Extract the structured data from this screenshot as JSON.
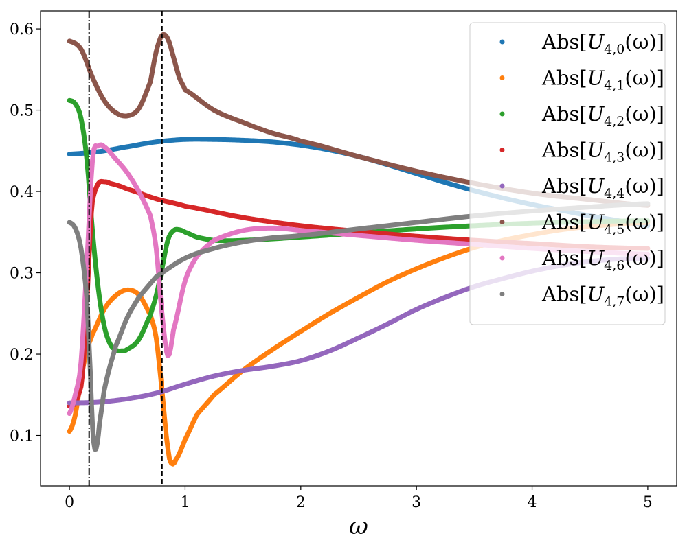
{
  "chart_data": {
    "type": "scatter",
    "xlabel": "ω",
    "ylabel": "",
    "xlim": [
      -0.25,
      5.25
    ],
    "ylim": [
      0.038,
      0.622
    ],
    "xticks": [
      0,
      1,
      2,
      3,
      4,
      5
    ],
    "xtick_labels": [
      "0",
      "1",
      "2",
      "3",
      "4",
      "5"
    ],
    "yticks": [
      0.1,
      0.2,
      0.3,
      0.4,
      0.5,
      0.6
    ],
    "ytick_labels": [
      "0.1",
      "0.2",
      "0.3",
      "0.4",
      "0.5",
      "0.6"
    ],
    "grid": false,
    "legend_position": "top-right",
    "vlines": [
      {
        "x": 0.17,
        "style": "dashdot",
        "color": "#000000"
      },
      {
        "x": 0.8,
        "style": "dashed",
        "color": "#000000"
      }
    ],
    "series": [
      {
        "name": "Abs[U4,0(ω)]",
        "legend": {
          "base": "Abs[",
          "italic": "U",
          "sub": "4,0",
          "rest": "(ω)]"
        },
        "color": "#1f77b4",
        "x": [
          0,
          0.25,
          0.5,
          0.75,
          1.0,
          1.25,
          1.5,
          1.75,
          2.0,
          2.25,
          2.5,
          2.75,
          3.0,
          3.25,
          3.5,
          3.75,
          4.0,
          4.25,
          4.5,
          4.75,
          5.0
        ],
        "y": [
          0.446,
          0.449,
          0.455,
          0.461,
          0.464,
          0.464,
          0.463,
          0.461,
          0.457,
          0.451,
          0.443,
          0.433,
          0.422,
          0.411,
          0.401,
          0.392,
          0.384,
          0.377,
          0.37,
          0.364,
          0.358
        ]
      },
      {
        "name": "Abs[U4,1(ω)]",
        "legend": {
          "base": "Abs[",
          "italic": "U",
          "sub": "4,1",
          "rest": "(ω)]"
        },
        "color": "#ff7f0e",
        "x": [
          0,
          0.05,
          0.1,
          0.15,
          0.2,
          0.3,
          0.4,
          0.5,
          0.6,
          0.7,
          0.75,
          0.8,
          0.85,
          0.88,
          0.92,
          1.0,
          1.1,
          1.25,
          1.5,
          1.75,
          2.0,
          2.25,
          2.5,
          2.75,
          3.0,
          3.25,
          3.5,
          3.75,
          4.0,
          4.25,
          4.5,
          4.75,
          5.0
        ],
        "y": [
          0.105,
          0.125,
          0.17,
          0.205,
          0.225,
          0.255,
          0.272,
          0.279,
          0.273,
          0.248,
          0.22,
          0.155,
          0.085,
          0.066,
          0.07,
          0.095,
          0.125,
          0.15,
          0.18,
          0.205,
          0.228,
          0.25,
          0.27,
          0.289,
          0.305,
          0.319,
          0.331,
          0.34,
          0.347,
          0.353,
          0.357,
          0.36,
          0.362
        ]
      },
      {
        "name": "Abs[U4,2(ω)]",
        "legend": {
          "base": "Abs[",
          "italic": "U",
          "sub": "4,2",
          "rest": "(ω)]"
        },
        "color": "#2ca02c",
        "x": [
          0,
          0.05,
          0.1,
          0.15,
          0.2,
          0.25,
          0.3,
          0.35,
          0.4,
          0.45,
          0.5,
          0.6,
          0.7,
          0.75,
          0.8,
          0.85,
          0.9,
          0.95,
          1.0,
          1.1,
          1.25,
          1.5,
          2.0,
          2.5,
          3.0,
          3.5,
          4.0,
          4.5,
          5.0
        ],
        "y": [
          0.512,
          0.508,
          0.49,
          0.44,
          0.35,
          0.28,
          0.235,
          0.213,
          0.205,
          0.204,
          0.206,
          0.218,
          0.248,
          0.272,
          0.305,
          0.34,
          0.352,
          0.353,
          0.35,
          0.344,
          0.34,
          0.34,
          0.344,
          0.349,
          0.354,
          0.358,
          0.361,
          0.363,
          0.364
        ]
      },
      {
        "name": "Abs[U4,3(ω)]",
        "legend": {
          "base": "Abs[",
          "italic": "U",
          "sub": "4,3",
          "rest": "(ω)]"
        },
        "color": "#d62728",
        "x": [
          0,
          0.05,
          0.1,
          0.12,
          0.15,
          0.18,
          0.2,
          0.25,
          0.3,
          0.35,
          0.5,
          0.75,
          1.0,
          1.5,
          2.0,
          2.5,
          3.0,
          3.5,
          4.0,
          4.5,
          5.0
        ],
        "y": [
          0.136,
          0.14,
          0.16,
          0.19,
          0.26,
          0.35,
          0.39,
          0.41,
          0.412,
          0.41,
          0.403,
          0.391,
          0.382,
          0.368,
          0.358,
          0.351,
          0.345,
          0.34,
          0.336,
          0.332,
          0.33
        ]
      },
      {
        "name": "Abs[U4,4(ω)]",
        "legend": {
          "base": "Abs[",
          "italic": "U",
          "sub": "4,4",
          "rest": "(ω)]"
        },
        "color": "#9467bd",
        "x": [
          0,
          0.25,
          0.5,
          0.75,
          1.0,
          1.25,
          1.5,
          1.75,
          2.0,
          2.25,
          2.5,
          2.75,
          3.0,
          3.25,
          3.5,
          3.75,
          4.0,
          4.25,
          4.5,
          4.75,
          5.0
        ],
        "y": [
          0.14,
          0.141,
          0.145,
          0.152,
          0.163,
          0.173,
          0.18,
          0.185,
          0.192,
          0.204,
          0.22,
          0.237,
          0.255,
          0.27,
          0.283,
          0.293,
          0.302,
          0.309,
          0.314,
          0.317,
          0.318
        ]
      },
      {
        "name": "Abs[U4,5(ω)]",
        "legend": {
          "base": "Abs[",
          "italic": "U",
          "sub": "4,5",
          "rest": "(ω)]"
        },
        "color": "#8c564b",
        "x": [
          0,
          0.1,
          0.2,
          0.3,
          0.4,
          0.5,
          0.6,
          0.7,
          0.75,
          0.8,
          0.85,
          0.9,
          0.95,
          1.0,
          1.25,
          1.5,
          1.75,
          2.0,
          2.5,
          3.0,
          3.5,
          4.0,
          4.5,
          5.0
        ],
        "y": [
          0.585,
          0.575,
          0.54,
          0.512,
          0.497,
          0.493,
          0.502,
          0.535,
          0.572,
          0.592,
          0.588,
          0.565,
          0.54,
          0.525,
          0.5,
          0.485,
          0.472,
          0.462,
          0.443,
          0.425,
          0.41,
          0.398,
          0.39,
          0.383
        ]
      },
      {
        "name": "Abs[U4,6(ω)]",
        "legend": {
          "base": "Abs[",
          "italic": "U",
          "sub": "4,6",
          "rest": "(ω)]"
        },
        "color": "#e377c2",
        "x": [
          0,
          0.05,
          0.1,
          0.15,
          0.2,
          0.25,
          0.3,
          0.4,
          0.5,
          0.6,
          0.7,
          0.75,
          0.8,
          0.85,
          0.9,
          1.0,
          1.1,
          1.25,
          1.5,
          1.75,
          2.0,
          2.5,
          3.0,
          3.5,
          4.0,
          4.5,
          5.0
        ],
        "y": [
          0.127,
          0.15,
          0.19,
          0.31,
          0.44,
          0.456,
          0.455,
          0.44,
          0.423,
          0.4,
          0.37,
          0.33,
          0.25,
          0.198,
          0.23,
          0.29,
          0.32,
          0.34,
          0.352,
          0.355,
          0.352,
          0.346,
          0.34,
          0.335,
          0.33,
          0.326,
          0.323
        ]
      },
      {
        "name": "Abs[U4,7(ω)]",
        "legend": {
          "base": "Abs[",
          "italic": "U",
          "sub": "4,7",
          "rest": "(ω)]"
        },
        "color": "#7f7f7f",
        "x": [
          0,
          0.05,
          0.1,
          0.15,
          0.18,
          0.2,
          0.22,
          0.24,
          0.26,
          0.3,
          0.35,
          0.4,
          0.5,
          0.6,
          0.75,
          1.0,
          1.25,
          1.5,
          1.75,
          2.0,
          2.5,
          3.0,
          3.5,
          4.0,
          4.5,
          5.0
        ],
        "y": [
          0.362,
          0.355,
          0.33,
          0.27,
          0.18,
          0.11,
          0.083,
          0.09,
          0.115,
          0.155,
          0.185,
          0.21,
          0.245,
          0.27,
          0.295,
          0.318,
          0.33,
          0.338,
          0.343,
          0.346,
          0.354,
          0.362,
          0.37,
          0.376,
          0.381,
          0.385
        ]
      }
    ]
  }
}
